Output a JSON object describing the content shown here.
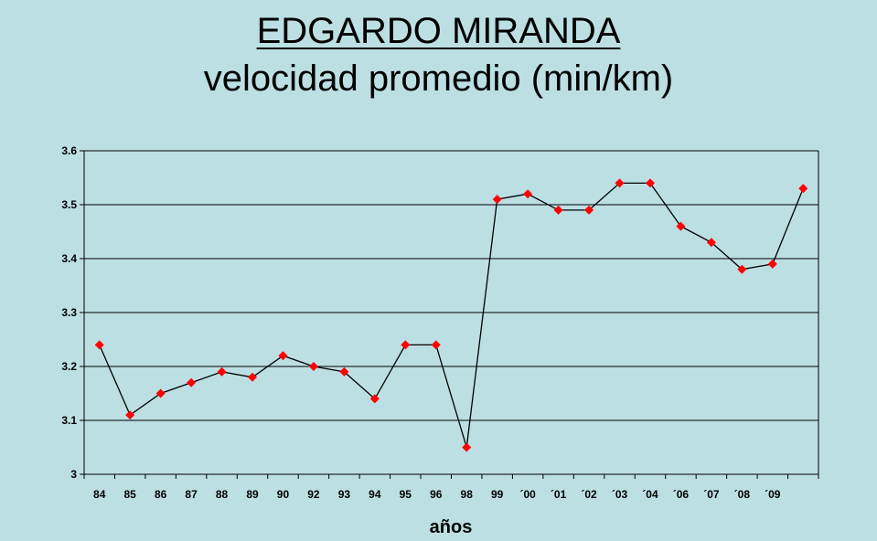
{
  "chart_data": {
    "type": "line",
    "title": "EDGARDO MIRANDA",
    "subtitle": "velocidad promedio (min/km)",
    "xlabel": "años",
    "ylabel": "",
    "ylim": [
      3,
      3.6
    ],
    "yticks": [
      "3",
      "3.1",
      "3.2",
      "3.3",
      "3.4",
      "3.5",
      "3.6"
    ],
    "grid": true,
    "legend": "none",
    "categories": [
      "84",
      "85",
      "86",
      "87",
      "88",
      "89",
      "90",
      "92",
      "93",
      "94",
      "95",
      "96",
      "98",
      "99",
      "´00",
      "´01",
      "´02",
      "´03",
      "´04",
      "´06",
      "´07",
      "´08",
      "´09",
      ""
    ],
    "series": [
      {
        "values": [
          3.24,
          3.11,
          3.15,
          3.17,
          3.19,
          3.18,
          3.22,
          3.2,
          3.19,
          3.14,
          3.24,
          3.24,
          3.05,
          3.51,
          3.52,
          3.49,
          3.49,
          3.54,
          3.54,
          3.46,
          3.43,
          3.38,
          3.39,
          3.53
        ],
        "line_color": "#000000",
        "marker_color": "#ff0000",
        "marker": "diamond"
      }
    ]
  }
}
